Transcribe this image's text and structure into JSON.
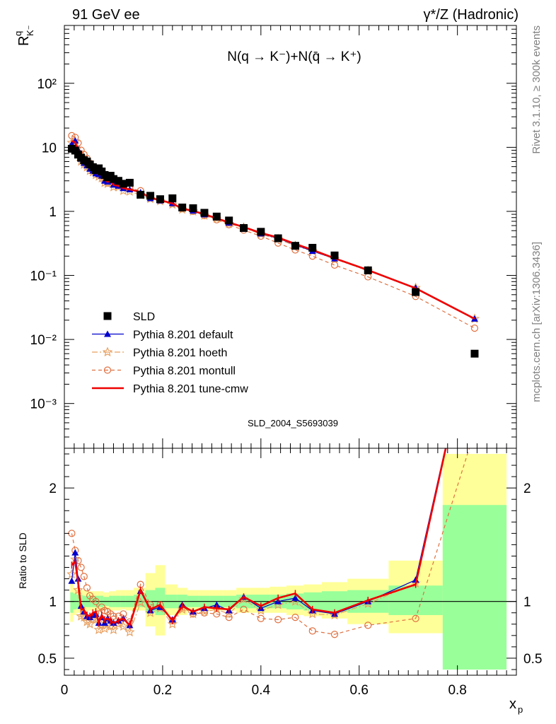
{
  "header": {
    "left": "91 GeV ee",
    "right": "γ*/Z (Hadronic)"
  },
  "side_labels": {
    "rivet": "Rivet 3.1.10, ≥ 300k events",
    "mcplots": "mcplots.cern.ch [arXiv:1306.3436]"
  },
  "watermark": "SLD_2004_S5693039",
  "colors": {
    "data": "#000000",
    "default": "#0000cc",
    "hoeth": "#e8a060",
    "montull": "#e07040",
    "cmw": "#ee0000",
    "band_yellow": "#ffff99",
    "band_green": "#99ff99"
  },
  "chart_data": [
    {
      "type": "scatter",
      "panel": "main",
      "title": "N(q → K⁻)+N(q̄ → K⁺)",
      "ylabel": "R",
      "ylabel_sup": "q",
      "ylabel_sub": "K⁻",
      "yscale": "log",
      "ylim": [
        0.0002,
        800
      ],
      "xlim": [
        0,
        0.92
      ],
      "y_tick_labels": [
        "10⁻³",
        "10⁻²",
        "10⁻¹",
        "1",
        "10",
        "10²"
      ],
      "legend_position": "bottom-left",
      "series": [
        {
          "name": "SLD",
          "style": "marker-square",
          "color": "#000000",
          "x": [
            0.015,
            0.022,
            0.028,
            0.034,
            0.04,
            0.046,
            0.052,
            0.058,
            0.064,
            0.07,
            0.076,
            0.082,
            0.088,
            0.094,
            0.1,
            0.11,
            0.12,
            0.133,
            0.155,
            0.175,
            0.195,
            0.22,
            0.24,
            0.262,
            0.285,
            0.31,
            0.335,
            0.365,
            0.4,
            0.435,
            0.47,
            0.505,
            0.55,
            0.618,
            0.715,
            0.835
          ],
          "y": [
            9.5,
            8.9,
            7.7,
            6.9,
            6.3,
            6.0,
            5.4,
            4.9,
            4.4,
            4.7,
            4.2,
            3.7,
            3.4,
            3.6,
            3.2,
            3.0,
            2.7,
            2.8,
            1.82,
            1.75,
            1.55,
            1.6,
            1.15,
            1.12,
            0.95,
            0.83,
            0.72,
            0.55,
            0.48,
            0.38,
            0.29,
            0.27,
            0.205,
            0.12,
            0.055,
            0.006
          ]
        },
        {
          "name": "Pythia 8.201 default",
          "style": "line-triangle",
          "color": "#0000cc",
          "x": [
            0.015,
            0.022,
            0.028,
            0.034,
            0.04,
            0.046,
            0.052,
            0.058,
            0.064,
            0.07,
            0.076,
            0.082,
            0.088,
            0.094,
            0.1,
            0.11,
            0.12,
            0.133,
            0.155,
            0.175,
            0.195,
            0.22,
            0.24,
            0.262,
            0.285,
            0.31,
            0.335,
            0.365,
            0.4,
            0.435,
            0.47,
            0.505,
            0.55,
            0.618,
            0.715,
            0.835
          ],
          "y": [
            11.2,
            12.7,
            9.2,
            6.6,
            5.7,
            5.2,
            4.6,
            4.3,
            3.9,
            3.8,
            3.6,
            3.0,
            2.9,
            3.0,
            2.6,
            2.5,
            2.3,
            2.2,
            1.98,
            1.6,
            1.47,
            1.34,
            1.11,
            1.02,
            0.89,
            0.8,
            0.66,
            0.57,
            0.45,
            0.38,
            0.3,
            0.24,
            0.183,
            0.12,
            0.064,
            0.021
          ]
        },
        {
          "name": "Pythia 8.201 hoeth",
          "style": "dashdot-star",
          "color": "#e8a060",
          "x": [
            0.015,
            0.022,
            0.028,
            0.034,
            0.04,
            0.046,
            0.052,
            0.058,
            0.064,
            0.07,
            0.076,
            0.082,
            0.088,
            0.094,
            0.1,
            0.11,
            0.12,
            0.133,
            0.155,
            0.175,
            0.195,
            0.22,
            0.24,
            0.262,
            0.285,
            0.31,
            0.335,
            0.365,
            0.4,
            0.435,
            0.47,
            0.505,
            0.55,
            0.618,
            0.715,
            0.835
          ],
          "y": [
            11.8,
            12.2,
            8.5,
            6.0,
            5.4,
            4.9,
            4.3,
            4.1,
            3.7,
            3.5,
            3.3,
            2.8,
            2.7,
            2.8,
            2.4,
            2.4,
            2.1,
            2.05,
            1.8,
            1.57,
            1.45,
            1.28,
            1.07,
            1.0,
            0.86,
            0.77,
            0.64,
            0.56,
            0.44,
            0.37,
            0.29,
            0.24,
            0.181,
            0.118,
            0.064,
            0.021
          ]
        },
        {
          "name": "Pythia 8.201 montull",
          "style": "dash-circle",
          "color": "#e07040",
          "x": [
            0.015,
            0.022,
            0.028,
            0.034,
            0.04,
            0.046,
            0.052,
            0.058,
            0.064,
            0.07,
            0.076,
            0.082,
            0.088,
            0.094,
            0.1,
            0.11,
            0.12,
            0.133,
            0.155,
            0.175,
            0.195,
            0.22,
            0.24,
            0.262,
            0.285,
            0.31,
            0.335,
            0.365,
            0.4,
            0.435,
            0.47,
            0.505,
            0.55,
            0.618,
            0.715,
            0.835
          ],
          "y": [
            15.2,
            14.3,
            11.7,
            9.0,
            7.7,
            6.7,
            5.7,
            5.0,
            4.4,
            4.2,
            4.0,
            3.4,
            3.1,
            3.2,
            2.8,
            2.6,
            2.4,
            2.3,
            2.1,
            1.7,
            1.5,
            1.32,
            1.1,
            1.0,
            0.86,
            0.74,
            0.62,
            0.51,
            0.41,
            0.32,
            0.25,
            0.2,
            0.145,
            0.095,
            0.047,
            0.015
          ]
        },
        {
          "name": "Pythia 8.201 tune-cmw",
          "style": "line-thick",
          "color": "#ee0000",
          "x": [
            0.015,
            0.022,
            0.028,
            0.034,
            0.04,
            0.046,
            0.052,
            0.058,
            0.064,
            0.07,
            0.076,
            0.082,
            0.088,
            0.094,
            0.1,
            0.11,
            0.12,
            0.133,
            0.155,
            0.175,
            0.195,
            0.22,
            0.24,
            0.262,
            0.285,
            0.31,
            0.335,
            0.365,
            0.4,
            0.435,
            0.47,
            0.505,
            0.55,
            0.618,
            0.715,
            0.835
          ],
          "y": [
            12.5,
            12.0,
            9.0,
            6.5,
            5.8,
            5.3,
            4.7,
            4.4,
            4.0,
            3.8,
            3.7,
            3.1,
            2.9,
            3.0,
            2.6,
            2.5,
            2.3,
            2.2,
            2.0,
            1.62,
            1.5,
            1.33,
            1.1,
            1.02,
            0.9,
            0.78,
            0.67,
            0.57,
            0.46,
            0.39,
            0.31,
            0.25,
            0.185,
            0.121,
            0.063,
            0.021
          ]
        }
      ]
    },
    {
      "type": "line",
      "panel": "ratio",
      "ylabel": "Ratio to SLD",
      "xlabel": "x",
      "xlabel_sub": "p",
      "ylim": [
        0.35,
        2.35
      ],
      "xlim": [
        0,
        0.92
      ],
      "y_ticks": [
        0.5,
        1,
        2
      ],
      "x_ticks": [
        0,
        0.2,
        0.4,
        0.6,
        0.8
      ],
      "bands": {
        "edges": [
          0.012,
          0.018,
          0.025,
          0.031,
          0.037,
          0.043,
          0.049,
          0.055,
          0.061,
          0.067,
          0.073,
          0.079,
          0.085,
          0.091,
          0.097,
          0.105,
          0.115,
          0.125,
          0.141,
          0.165,
          0.185,
          0.205,
          0.23,
          0.25,
          0.274,
          0.296,
          0.323,
          0.35,
          0.38,
          0.418,
          0.452,
          0.487,
          0.524,
          0.576,
          0.66,
          0.77,
          0.9
        ],
        "yellow_lo": [
          0.82,
          0.88,
          0.9,
          0.9,
          0.91,
          0.91,
          0.92,
          0.92,
          0.92,
          0.92,
          0.92,
          0.93,
          0.93,
          0.92,
          0.92,
          0.92,
          0.93,
          0.92,
          0.92,
          0.78,
          0.7,
          0.88,
          0.88,
          0.92,
          0.92,
          0.92,
          0.92,
          0.9,
          0.9,
          0.9,
          0.88,
          0.87,
          0.85,
          0.8,
          0.72,
          0.72,
          0.4
        ],
        "yellow_hi": [
          1.18,
          1.12,
          1.1,
          1.1,
          1.1,
          1.09,
          1.09,
          1.09,
          1.09,
          1.09,
          1.09,
          1.08,
          1.08,
          1.09,
          1.09,
          1.1,
          1.1,
          1.1,
          1.12,
          1.25,
          1.32,
          1.15,
          1.12,
          1.1,
          1.1,
          1.1,
          1.1,
          1.12,
          1.12,
          1.13,
          1.14,
          1.15,
          1.17,
          1.2,
          1.36,
          2.3,
          2.3
        ],
        "green_lo": [
          0.9,
          0.93,
          0.94,
          0.94,
          0.95,
          0.95,
          0.95,
          0.95,
          0.95,
          0.95,
          0.95,
          0.96,
          0.96,
          0.95,
          0.95,
          0.95,
          0.95,
          0.95,
          0.95,
          0.9,
          0.88,
          0.94,
          0.94,
          0.95,
          0.95,
          0.95,
          0.95,
          0.94,
          0.94,
          0.94,
          0.93,
          0.92,
          0.91,
          0.9,
          0.88,
          0.4,
          0.4
        ],
        "green_hi": [
          1.08,
          1.07,
          1.06,
          1.06,
          1.05,
          1.05,
          1.05,
          1.05,
          1.05,
          1.05,
          1.05,
          1.04,
          1.04,
          1.05,
          1.05,
          1.05,
          1.05,
          1.05,
          1.06,
          1.1,
          1.12,
          1.06,
          1.06,
          1.05,
          1.05,
          1.05,
          1.05,
          1.06,
          1.06,
          1.06,
          1.07,
          1.08,
          1.09,
          1.1,
          1.14,
          1.85,
          1.85
        ]
      },
      "series": [
        {
          "name": "Pythia 8.201 default",
          "color": "#0000cc",
          "x": [
            0.015,
            0.022,
            0.028,
            0.034,
            0.04,
            0.046,
            0.052,
            0.058,
            0.064,
            0.07,
            0.076,
            0.082,
            0.088,
            0.094,
            0.1,
            0.11,
            0.12,
            0.133,
            0.155,
            0.175,
            0.195,
            0.22,
            0.24,
            0.262,
            0.285,
            0.31,
            0.335,
            0.365,
            0.4,
            0.435,
            0.47,
            0.505,
            0.55,
            0.618,
            0.715,
            0.835
          ],
          "y": [
            1.18,
            1.43,
            1.2,
            0.96,
            0.91,
            0.87,
            0.86,
            0.88,
            0.89,
            0.81,
            0.86,
            0.81,
            0.85,
            0.83,
            0.81,
            0.83,
            0.85,
            0.79,
            1.09,
            0.92,
            0.95,
            0.84,
            0.97,
            0.91,
            0.94,
            0.97,
            0.92,
            1.04,
            0.94,
            1.0,
            1.03,
            0.92,
            0.89,
            1.0,
            1.19,
            3.5
          ]
        },
        {
          "name": "Pythia 8.201 hoeth",
          "color": "#e8a060",
          "x": [
            0.015,
            0.022,
            0.028,
            0.034,
            0.04,
            0.046,
            0.052,
            0.058,
            0.064,
            0.07,
            0.076,
            0.082,
            0.088,
            0.094,
            0.1,
            0.11,
            0.12,
            0.133,
            0.155,
            0.175,
            0.195,
            0.22,
            0.24,
            0.262,
            0.285,
            0.31,
            0.335,
            0.365,
            0.4,
            0.435,
            0.47,
            0.505,
            0.55,
            0.618,
            0.715,
            0.835
          ],
          "y": [
            1.24,
            1.37,
            1.1,
            0.87,
            0.86,
            0.82,
            0.8,
            0.84,
            0.84,
            0.75,
            0.79,
            0.76,
            0.8,
            0.78,
            0.75,
            0.8,
            0.78,
            0.73,
            0.99,
            0.9,
            0.94,
            0.8,
            0.93,
            0.89,
            0.91,
            0.93,
            0.89,
            1.02,
            0.92,
            0.97,
            1.0,
            0.89,
            0.88,
            0.98,
            1.16,
            3.5
          ]
        },
        {
          "name": "Pythia 8.201 montull",
          "color": "#e07040",
          "x": [
            0.015,
            0.022,
            0.028,
            0.034,
            0.04,
            0.046,
            0.052,
            0.058,
            0.064,
            0.07,
            0.076,
            0.082,
            0.088,
            0.094,
            0.1,
            0.11,
            0.12,
            0.133,
            0.155,
            0.175,
            0.195,
            0.22,
            0.24,
            0.262,
            0.285,
            0.31,
            0.335,
            0.365,
            0.4,
            0.435,
            0.47,
            0.505,
            0.55,
            0.618,
            0.715,
            0.835
          ],
          "y": [
            1.6,
            1.45,
            1.36,
            1.3,
            1.22,
            1.12,
            1.05,
            1.02,
            1.0,
            0.89,
            0.95,
            0.92,
            0.91,
            0.89,
            0.87,
            0.87,
            0.89,
            0.82,
            1.15,
            0.97,
            0.97,
            0.83,
            0.95,
            0.89,
            0.9,
            0.89,
            0.86,
            0.93,
            0.85,
            0.84,
            0.86,
            0.74,
            0.71,
            0.79,
            0.85,
            2.5
          ]
        },
        {
          "name": "Pythia 8.201 tune-cmw",
          "color": "#ee0000",
          "x": [
            0.015,
            0.022,
            0.028,
            0.034,
            0.04,
            0.046,
            0.052,
            0.058,
            0.064,
            0.07,
            0.076,
            0.082,
            0.088,
            0.094,
            0.1,
            0.11,
            0.12,
            0.133,
            0.155,
            0.175,
            0.195,
            0.22,
            0.24,
            0.262,
            0.285,
            0.31,
            0.335,
            0.365,
            0.4,
            0.435,
            0.47,
            0.505,
            0.55,
            0.618,
            0.715,
            0.835
          ],
          "y": [
            1.32,
            1.35,
            1.17,
            0.94,
            0.92,
            0.88,
            0.87,
            0.9,
            0.91,
            0.81,
            0.88,
            0.84,
            0.85,
            0.83,
            0.81,
            0.83,
            0.85,
            0.79,
            1.1,
            0.93,
            0.97,
            0.83,
            0.96,
            0.91,
            0.95,
            0.94,
            0.93,
            1.04,
            0.96,
            1.03,
            1.07,
            0.93,
            0.9,
            1.01,
            1.15,
            3.5
          ]
        }
      ]
    }
  ]
}
